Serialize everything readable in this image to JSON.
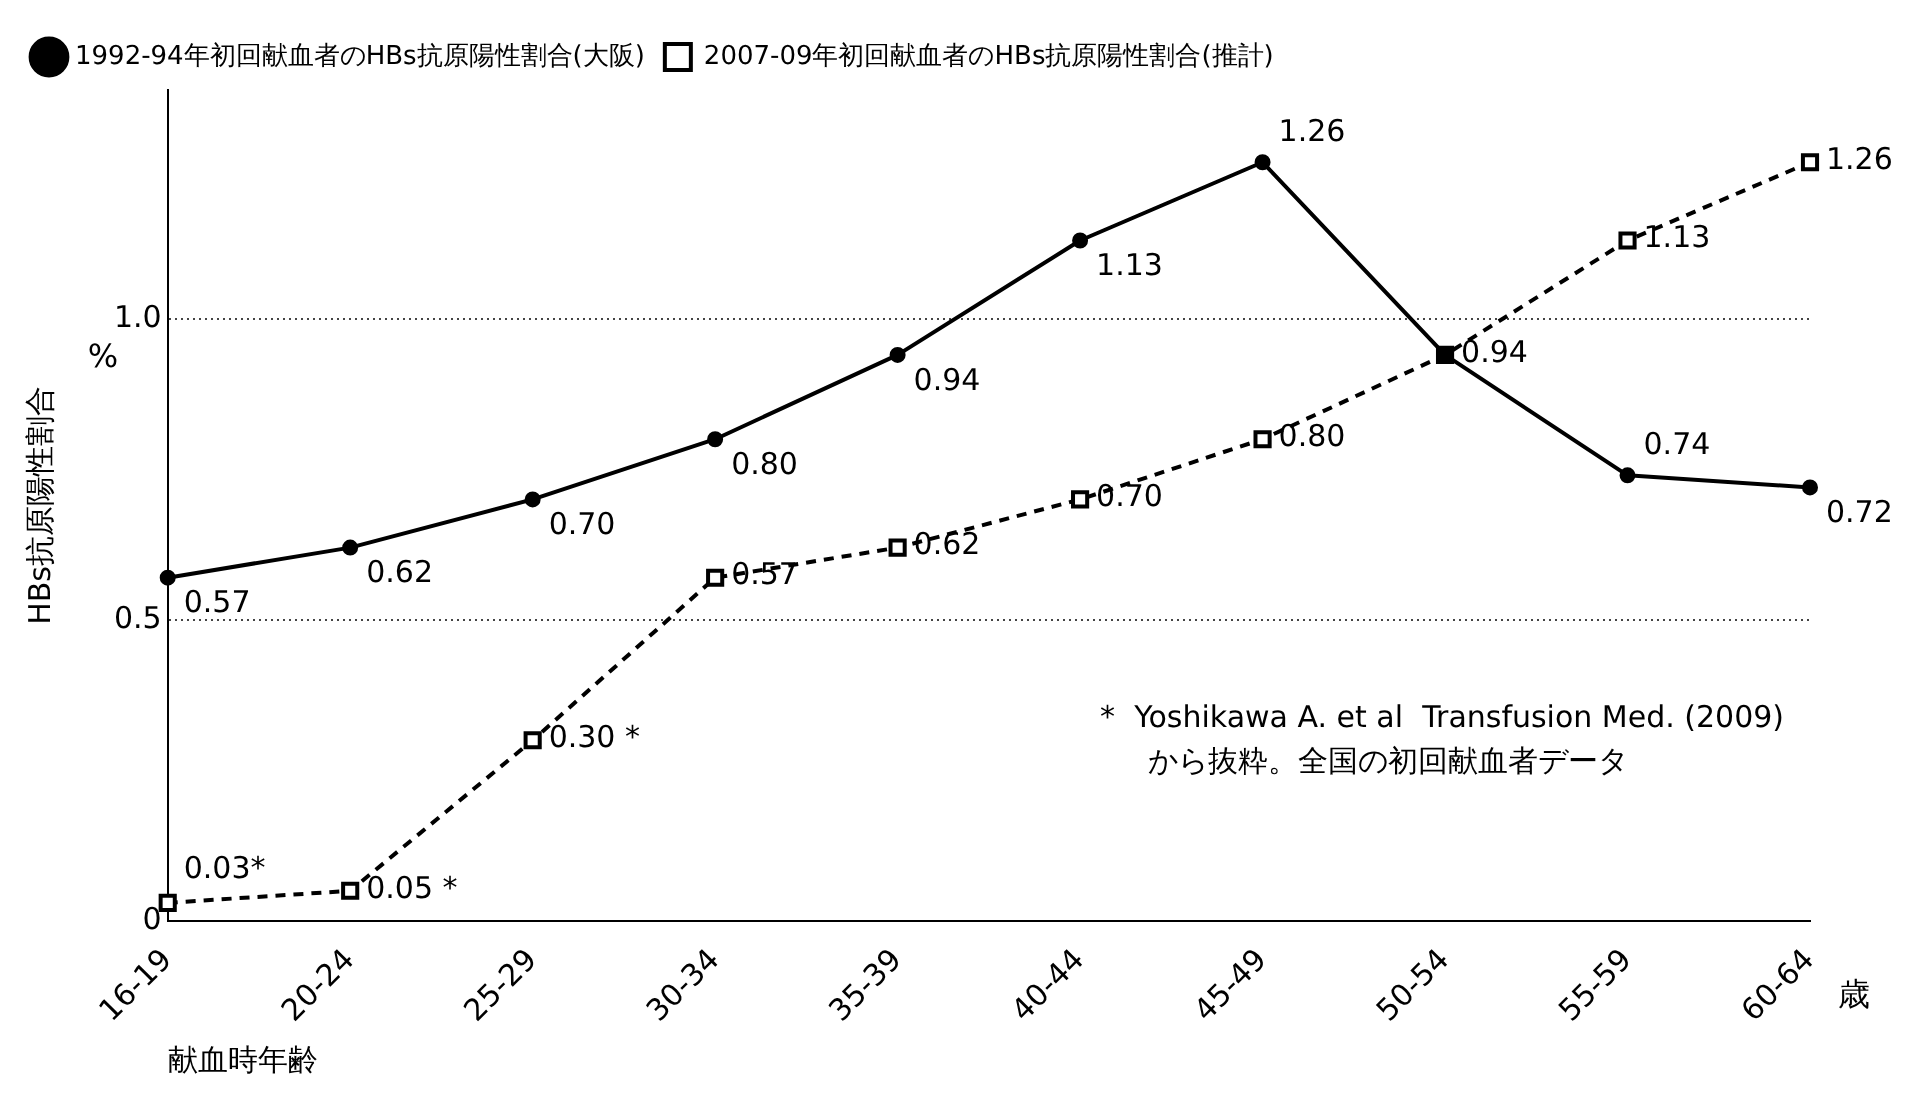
{
  "chart_data": {
    "type": "line",
    "xlabel": "献血時年齢",
    "ylabel": "HBs抗原陽性割合",
    "categories": [
      "16-19",
      "20-24",
      "25-29",
      "30-34",
      "35-39",
      "40-44",
      "45-49",
      "50-54",
      "55-59",
      "60-64"
    ],
    "series": [
      {
        "name": "1992-94年初回献血者のHBs抗原陽性割合(大阪)",
        "color": "#000000",
        "marker": "circle",
        "line_style": "solid",
        "values": [
          0.57,
          0.62,
          0.7,
          0.8,
          0.94,
          1.13,
          1.26,
          0.94,
          0.74,
          0.72
        ],
        "value_labels": [
          "0.57",
          "0.62",
          "0.70",
          "0.80",
          "0.94",
          "1.13",
          "1.26",
          null,
          "0.74",
          "0.72"
        ]
      },
      {
        "name": "2007-09年初回献血者のHBs抗原陽性割合(推計)",
        "color": "#000000",
        "marker": "square",
        "line_style": "dashed",
        "values": [
          0.03,
          0.05,
          0.3,
          0.57,
          0.62,
          0.7,
          0.8,
          0.94,
          1.13,
          1.26
        ],
        "value_labels": [
          "0.03*",
          "0.05 *",
          "0.30 *",
          "0.57",
          "0.62",
          "0.70",
          "0.80",
          "0.94",
          "1.13",
          "1.26"
        ]
      }
    ],
    "ylim": [
      0,
      1.38
    ],
    "yticks": [
      0,
      {
        "value": 0.5,
        "label": "0.5"
      },
      {
        "value": 1,
        "label": "1.0"
      }
    ],
    "grid": "y",
    "legend": "top left",
    "annotations": [
      "%",
      "歳",
      "*  Yoshikawa A. et al  Transfusion Med. (2009)\nから抜粋。全国の初回献血者データ"
    ]
  }
}
